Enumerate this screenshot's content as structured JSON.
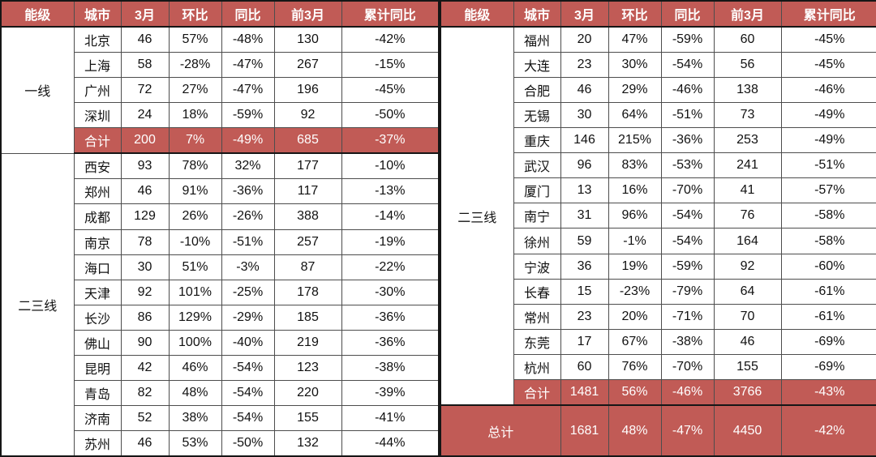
{
  "theme": {
    "accent": "#C15B56",
    "header_text": "#FFFFFF",
    "text": "#111111",
    "border": "#4D4D4D",
    "border_strong": "#161616",
    "background": "#FFFFFF"
  },
  "chart_data": {
    "type": "table",
    "columns": [
      "能级",
      "城市",
      "3月",
      "环比",
      "同比",
      "前3月",
      "累计同比"
    ],
    "left": {
      "groups": [
        {
          "tier": "一线",
          "rows": [
            [
              "北京",
              "46",
              "57%",
              "-48%",
              "130",
              "-42%"
            ],
            [
              "上海",
              "58",
              "-28%",
              "-47%",
              "267",
              "-15%"
            ],
            [
              "广州",
              "72",
              "27%",
              "-47%",
              "196",
              "-45%"
            ],
            [
              "深圳",
              "24",
              "18%",
              "-59%",
              "92",
              "-50%"
            ]
          ],
          "total": [
            "合计",
            "200",
            "7%",
            "-49%",
            "685",
            "-37%"
          ]
        },
        {
          "tier": "二三线",
          "rows": [
            [
              "西安",
              "93",
              "78%",
              "32%",
              "177",
              "-10%"
            ],
            [
              "郑州",
              "46",
              "91%",
              "-36%",
              "117",
              "-13%"
            ],
            [
              "成都",
              "129",
              "26%",
              "-26%",
              "388",
              "-14%"
            ],
            [
              "南京",
              "78",
              "-10%",
              "-51%",
              "257",
              "-19%"
            ],
            [
              "海口",
              "30",
              "51%",
              "-3%",
              "87",
              "-22%"
            ],
            [
              "天津",
              "92",
              "101%",
              "-25%",
              "178",
              "-30%"
            ],
            [
              "长沙",
              "86",
              "129%",
              "-29%",
              "185",
              "-36%"
            ],
            [
              "佛山",
              "90",
              "100%",
              "-40%",
              "219",
              "-36%"
            ],
            [
              "昆明",
              "42",
              "46%",
              "-54%",
              "123",
              "-38%"
            ],
            [
              "青岛",
              "82",
              "48%",
              "-54%",
              "220",
              "-39%"
            ],
            [
              "济南",
              "52",
              "38%",
              "-54%",
              "155",
              "-41%"
            ],
            [
              "苏州",
              "46",
              "53%",
              "-50%",
              "132",
              "-44%"
            ]
          ]
        }
      ]
    },
    "right": {
      "groups": [
        {
          "tier": "二三线",
          "rows": [
            [
              "福州",
              "20",
              "47%",
              "-59%",
              "60",
              "-45%"
            ],
            [
              "大连",
              "23",
              "30%",
              "-54%",
              "56",
              "-45%"
            ],
            [
              "合肥",
              "46",
              "29%",
              "-46%",
              "138",
              "-46%"
            ],
            [
              "无锡",
              "30",
              "64%",
              "-51%",
              "73",
              "-49%"
            ],
            [
              "重庆",
              "146",
              "215%",
              "-36%",
              "253",
              "-49%"
            ],
            [
              "武汉",
              "96",
              "83%",
              "-53%",
              "241",
              "-51%"
            ],
            [
              "厦门",
              "13",
              "16%",
              "-70%",
              "41",
              "-57%"
            ],
            [
              "南宁",
              "31",
              "96%",
              "-54%",
              "76",
              "-58%"
            ],
            [
              "徐州",
              "59",
              "-1%",
              "-54%",
              "164",
              "-58%"
            ],
            [
              "宁波",
              "36",
              "19%",
              "-59%",
              "92",
              "-60%"
            ],
            [
              "长春",
              "15",
              "-23%",
              "-79%",
              "64",
              "-61%"
            ],
            [
              "常州",
              "23",
              "20%",
              "-71%",
              "70",
              "-61%"
            ],
            [
              "东莞",
              "17",
              "67%",
              "-38%",
              "46",
              "-69%"
            ],
            [
              "杭州",
              "60",
              "76%",
              "-70%",
              "155",
              "-69%"
            ]
          ],
          "total": [
            "合计",
            "1481",
            "56%",
            "-46%",
            "3766",
            "-43%"
          ]
        }
      ],
      "grand_total": {
        "label": "总计",
        "values": [
          "1681",
          "48%",
          "-47%",
          "4450",
          "-42%"
        ]
      }
    }
  }
}
